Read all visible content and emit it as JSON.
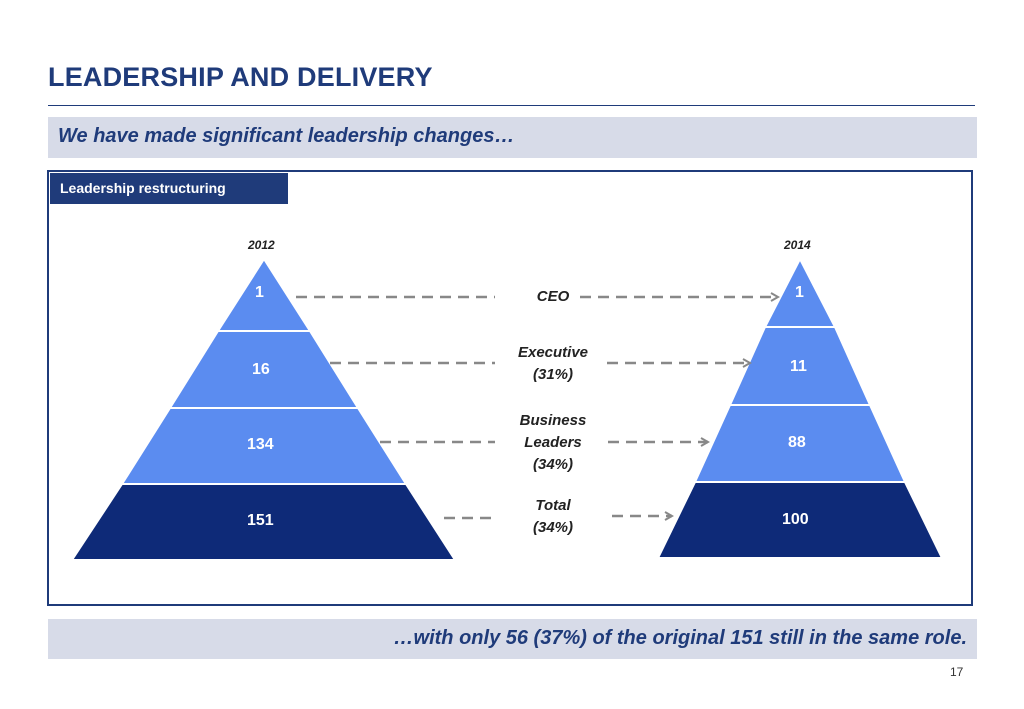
{
  "title": "LEADERSHIP AND DELIVERY",
  "subtitle": "We have made significant leadership changes…",
  "panel_label": "Leadership restructuring",
  "colors": {
    "brand": "#1f3b7a",
    "tier_light": "#5b8cf0",
    "tier_dark": "#0e2a78",
    "band": "#d7dbe8",
    "arrow": "#888888"
  },
  "left": {
    "year": "2012",
    "values": [
      "1",
      "16",
      "134",
      "151"
    ]
  },
  "right": {
    "year": "2014",
    "values": [
      "1",
      "11",
      "88",
      "100"
    ]
  },
  "categories": [
    {
      "lines": [
        "CEO"
      ]
    },
    {
      "lines": [
        "Executive",
        "(31%)"
      ]
    },
    {
      "lines": [
        "Business",
        "Leaders",
        "(34%)"
      ]
    },
    {
      "lines": [
        "Total",
        "(34%)"
      ]
    }
  ],
  "footer": "…with only 56 (37%) of the original 151 still in the same role.",
  "page_number": "17"
}
